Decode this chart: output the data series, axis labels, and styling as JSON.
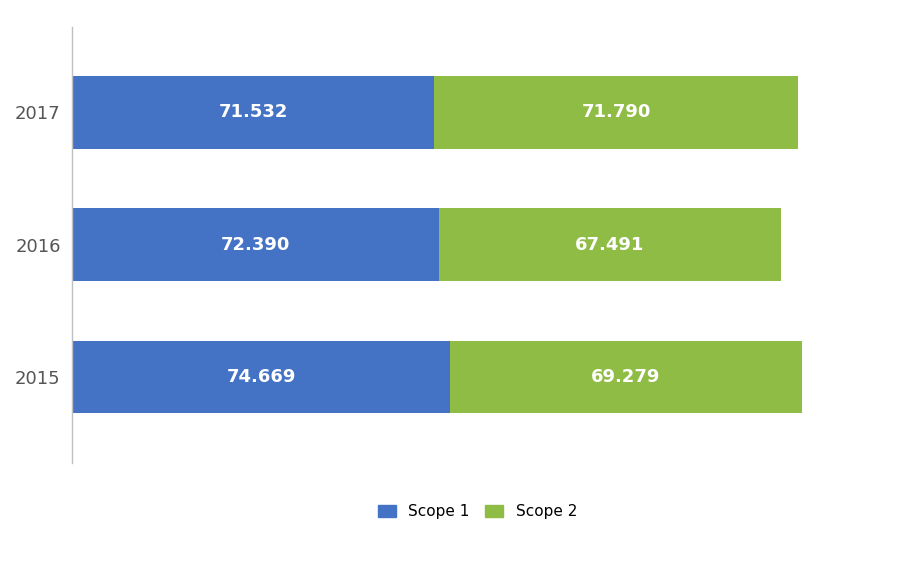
{
  "years": [
    "2015",
    "2016",
    "2017"
  ],
  "scope1": [
    74.669,
    72.39,
    71.532
  ],
  "scope2": [
    69.279,
    67.491,
    71.79
  ],
  "scope1_color": "#4472C4",
  "scope2_color": "#8fbc45",
  "label_color": "#ffffff",
  "label_fontsize": 13,
  "bar_height": 0.55,
  "legend_labels": [
    "Scope 1",
    "Scope 2"
  ],
  "background_color": "#ffffff",
  "xlim": [
    0,
    160
  ],
  "label_fontweight": "bold",
  "spine_color": "#c0c0c0"
}
